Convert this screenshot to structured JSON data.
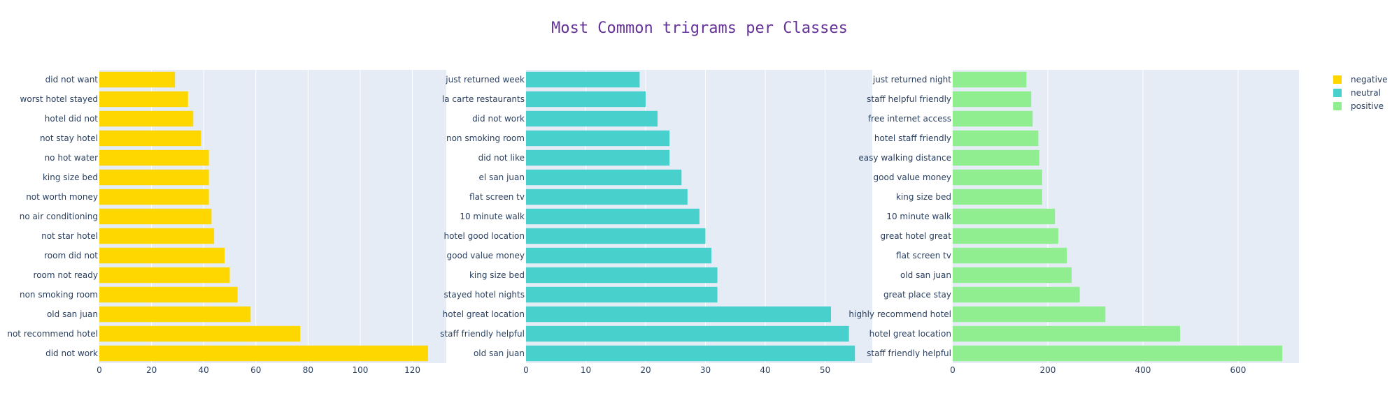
{
  "chart_data": {
    "type": "bar",
    "orientation": "horizontal",
    "title": "Most Common trigrams per Classes",
    "title_color": "#663399",
    "plot_bgcolor": "#E5ECF6",
    "grid": true,
    "legend_placement": "top-right",
    "legend": [
      {
        "name": "negative",
        "color": "#FFD700"
      },
      {
        "name": "neutral",
        "color": "#48D1CC"
      },
      {
        "name": "positive",
        "color": "#90EE90"
      }
    ],
    "subplots": [
      {
        "name": "negative",
        "color": "#FFD700",
        "xlim": [
          0,
          133
        ],
        "xticks": [
          0,
          20,
          40,
          60,
          80,
          100,
          120
        ],
        "categories": [
          "did not want",
          "worst hotel stayed",
          "hotel did not",
          "not stay hotel",
          "no hot water",
          "king size bed",
          "not worth money",
          "no air conditioning",
          "not star hotel",
          "room did not",
          "room not ready",
          "non smoking room",
          "old san juan",
          "not recommend hotel",
          "did not work"
        ],
        "values": [
          29,
          34,
          36,
          39,
          42,
          42,
          42,
          43,
          44,
          48,
          50,
          53,
          58,
          77,
          126
        ]
      },
      {
        "name": "neutral",
        "color": "#48D1CC",
        "xlim": [
          0,
          57.9
        ],
        "xticks": [
          0,
          10,
          20,
          30,
          40,
          50
        ],
        "categories": [
          "just returned week",
          "la carte restaurants",
          "did not work",
          "non smoking room",
          "did not like",
          "el san juan",
          "flat screen tv",
          "10 minute walk",
          "hotel good location",
          "good value money",
          "king size bed",
          "stayed hotel nights",
          "hotel great location",
          "staff friendly helpful",
          "old san juan"
        ],
        "values": [
          19,
          20,
          22,
          24,
          24,
          26,
          27,
          29,
          30,
          31,
          32,
          32,
          51,
          54,
          55
        ]
      },
      {
        "name": "positive",
        "color": "#90EE90",
        "xlim": [
          0,
          728
        ],
        "xticks": [
          0,
          200,
          400,
          600
        ],
        "categories": [
          "just returned night",
          "staff helpful friendly",
          "free internet access",
          "hotel staff friendly",
          "easy walking distance",
          "good value money",
          "king size bed",
          "10 minute walk",
          "great hotel great",
          "flat screen tv",
          "old san juan",
          "great place stay",
          "highly recommend hotel",
          "hotel great location",
          "staff friendly helpful"
        ],
        "values": [
          155,
          165,
          168,
          180,
          182,
          188,
          188,
          215,
          222,
          240,
          250,
          267,
          321,
          478,
          693
        ]
      }
    ]
  }
}
